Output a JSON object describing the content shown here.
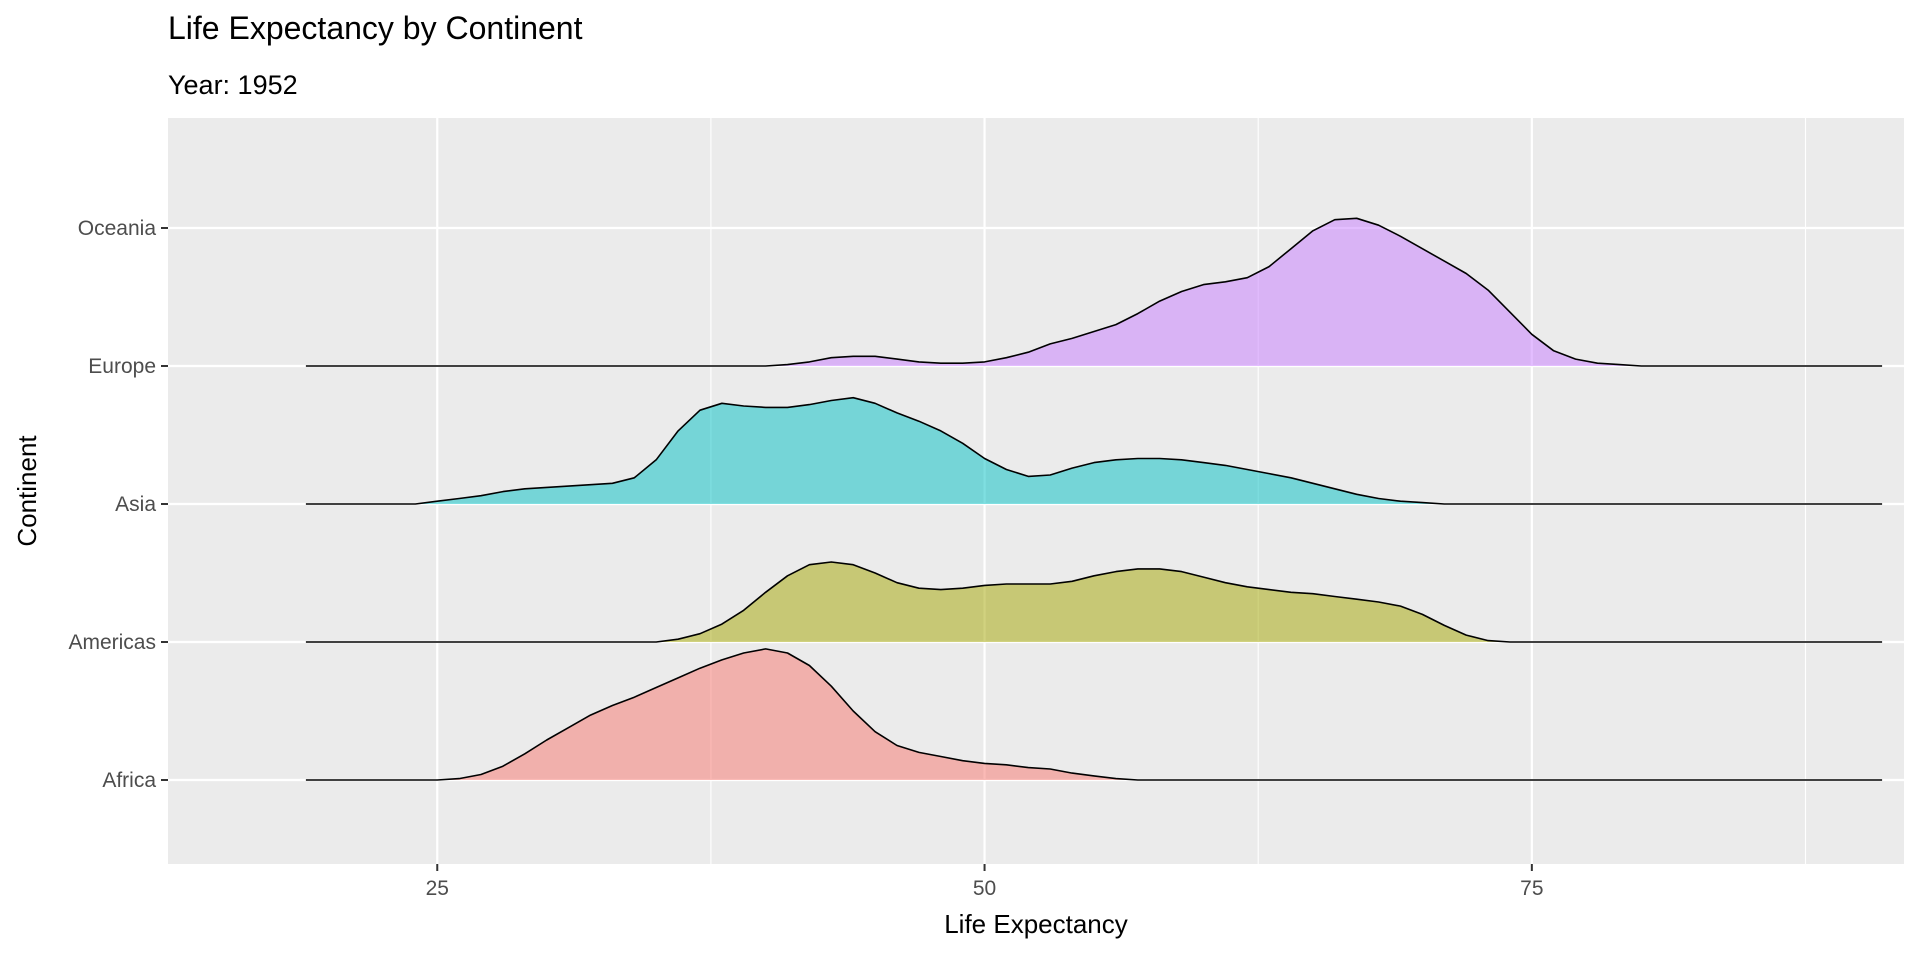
{
  "chart_data": {
    "type": "ridgeline",
    "title": "Life Expectancy by Continent",
    "subtitle": "Year: 1952",
    "xlabel": "Life Expectancy",
    "ylabel": "Continent",
    "xlim": [
      12.7,
      92.0
    ],
    "x_ticks": [
      25,
      50,
      75
    ],
    "x_tick_labels": [
      "25",
      "50",
      "75"
    ],
    "baseline_range": [
      19,
      91
    ],
    "categories": [
      "Africa",
      "Americas",
      "Asia",
      "Europe",
      "Oceania"
    ],
    "grid": true,
    "legend": "none",
    "series": [
      {
        "name": "Africa",
        "color": "#F8766D",
        "points": [
          [
            19,
            0
          ],
          [
            25,
            0
          ],
          [
            26,
            0.01
          ],
          [
            27,
            0.04
          ],
          [
            28,
            0.1
          ],
          [
            29,
            0.19
          ],
          [
            30,
            0.29
          ],
          [
            31,
            0.38
          ],
          [
            32,
            0.47
          ],
          [
            33,
            0.54
          ],
          [
            34,
            0.6
          ],
          [
            35,
            0.67
          ],
          [
            36,
            0.74
          ],
          [
            37,
            0.81
          ],
          [
            38,
            0.87
          ],
          [
            39,
            0.92
          ],
          [
            40,
            0.95
          ],
          [
            41,
            0.92
          ],
          [
            42,
            0.83
          ],
          [
            43,
            0.68
          ],
          [
            44,
            0.5
          ],
          [
            45,
            0.35
          ],
          [
            46,
            0.25
          ],
          [
            47,
            0.2
          ],
          [
            48,
            0.17
          ],
          [
            49,
            0.14
          ],
          [
            50,
            0.12
          ],
          [
            51,
            0.11
          ],
          [
            52,
            0.09
          ],
          [
            53,
            0.08
          ],
          [
            54,
            0.05
          ],
          [
            55,
            0.03
          ],
          [
            56,
            0.01
          ],
          [
            57,
            0
          ],
          [
            91,
            0
          ]
        ]
      },
      {
        "name": "Americas",
        "color": "#A3A500",
        "points": [
          [
            19,
            0
          ],
          [
            35,
            0
          ],
          [
            36,
            0.02
          ],
          [
            37,
            0.06
          ],
          [
            38,
            0.13
          ],
          [
            39,
            0.23
          ],
          [
            40,
            0.36
          ],
          [
            41,
            0.48
          ],
          [
            42,
            0.56
          ],
          [
            43,
            0.58
          ],
          [
            44,
            0.56
          ],
          [
            45,
            0.5
          ],
          [
            46,
            0.43
          ],
          [
            47,
            0.39
          ],
          [
            48,
            0.38
          ],
          [
            49,
            0.39
          ],
          [
            50,
            0.41
          ],
          [
            51,
            0.42
          ],
          [
            52,
            0.42
          ],
          [
            53,
            0.42
          ],
          [
            54,
            0.44
          ],
          [
            55,
            0.48
          ],
          [
            56,
            0.51
          ],
          [
            57,
            0.53
          ],
          [
            58,
            0.53
          ],
          [
            59,
            0.51
          ],
          [
            60,
            0.47
          ],
          [
            61,
            0.43
          ],
          [
            62,
            0.4
          ],
          [
            63,
            0.38
          ],
          [
            64,
            0.36
          ],
          [
            65,
            0.35
          ],
          [
            66,
            0.33
          ],
          [
            67,
            0.31
          ],
          [
            68,
            0.29
          ],
          [
            69,
            0.26
          ],
          [
            70,
            0.2
          ],
          [
            71,
            0.12
          ],
          [
            72,
            0.05
          ],
          [
            73,
            0.01
          ],
          [
            74,
            0
          ],
          [
            91,
            0
          ]
        ]
      },
      {
        "name": "Asia",
        "color": "#00BFC4",
        "points": [
          [
            19,
            0
          ],
          [
            24,
            0
          ],
          [
            25,
            0.02
          ],
          [
            26,
            0.04
          ],
          [
            27,
            0.06
          ],
          [
            28,
            0.09
          ],
          [
            29,
            0.11
          ],
          [
            30,
            0.12
          ],
          [
            31,
            0.13
          ],
          [
            32,
            0.14
          ],
          [
            33,
            0.15
          ],
          [
            34,
            0.19
          ],
          [
            35,
            0.32
          ],
          [
            36,
            0.53
          ],
          [
            37,
            0.68
          ],
          [
            38,
            0.73
          ],
          [
            39,
            0.71
          ],
          [
            40,
            0.7
          ],
          [
            41,
            0.7
          ],
          [
            42,
            0.72
          ],
          [
            43,
            0.75
          ],
          [
            44,
            0.77
          ],
          [
            45,
            0.73
          ],
          [
            46,
            0.66
          ],
          [
            47,
            0.6
          ],
          [
            48,
            0.53
          ],
          [
            49,
            0.44
          ],
          [
            50,
            0.33
          ],
          [
            51,
            0.25
          ],
          [
            52,
            0.2
          ],
          [
            53,
            0.21
          ],
          [
            54,
            0.26
          ],
          [
            55,
            0.3
          ],
          [
            56,
            0.32
          ],
          [
            57,
            0.33
          ],
          [
            58,
            0.33
          ],
          [
            59,
            0.32
          ],
          [
            60,
            0.3
          ],
          [
            61,
            0.28
          ],
          [
            62,
            0.25
          ],
          [
            63,
            0.22
          ],
          [
            64,
            0.19
          ],
          [
            65,
            0.15
          ],
          [
            66,
            0.11
          ],
          [
            67,
            0.07
          ],
          [
            68,
            0.04
          ],
          [
            69,
            0.02
          ],
          [
            70,
            0.01
          ],
          [
            71,
            0
          ],
          [
            91,
            0
          ]
        ]
      },
      {
        "name": "Europe",
        "color": "#C77CFF",
        "points": [
          [
            19,
            0
          ],
          [
            40,
            0
          ],
          [
            41,
            0.01
          ],
          [
            42,
            0.03
          ],
          [
            43,
            0.06
          ],
          [
            44,
            0.07
          ],
          [
            45,
            0.07
          ],
          [
            46,
            0.05
          ],
          [
            47,
            0.03
          ],
          [
            48,
            0.02
          ],
          [
            49,
            0.02
          ],
          [
            50,
            0.03
          ],
          [
            51,
            0.06
          ],
          [
            52,
            0.1
          ],
          [
            53,
            0.16
          ],
          [
            54,
            0.2
          ],
          [
            55,
            0.25
          ],
          [
            56,
            0.3
          ],
          [
            57,
            0.38
          ],
          [
            58,
            0.47
          ],
          [
            59,
            0.54
          ],
          [
            60,
            0.59
          ],
          [
            61,
            0.61
          ],
          [
            62,
            0.64
          ],
          [
            63,
            0.72
          ],
          [
            64,
            0.85
          ],
          [
            65,
            0.98
          ],
          [
            66,
            1.06
          ],
          [
            67,
            1.07
          ],
          [
            68,
            1.02
          ],
          [
            69,
            0.94
          ],
          [
            70,
            0.85
          ],
          [
            71,
            0.76
          ],
          [
            72,
            0.67
          ],
          [
            73,
            0.55
          ],
          [
            74,
            0.39
          ],
          [
            75,
            0.23
          ],
          [
            76,
            0.11
          ],
          [
            77,
            0.05
          ],
          [
            78,
            0.02
          ],
          [
            79,
            0.01
          ],
          [
            80,
            0
          ],
          [
            91,
            0
          ]
        ]
      }
    ]
  }
}
